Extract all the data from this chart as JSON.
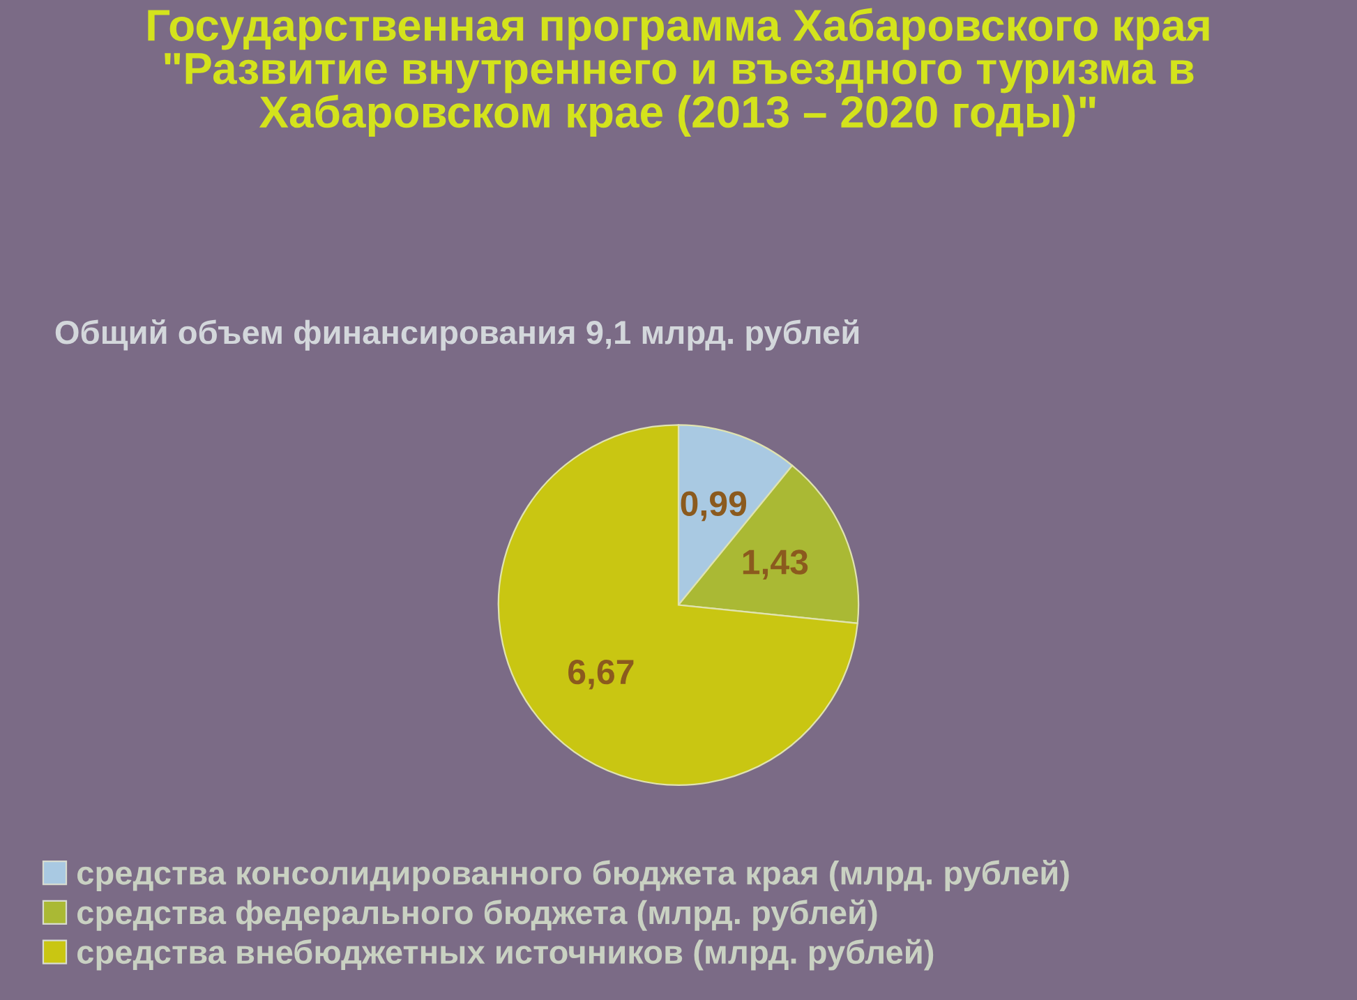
{
  "chart_data": {
    "type": "pie",
    "title": "Государственная программа Хабаровского края\n\"Развитие внутреннего и въездного туризма в\nХабаровском крае (2013 – 2020 годы)\"",
    "subtitle": "Общий объем финансирования 9,1 млрд. рублей",
    "categories": [
      "средства консолидированного бюджета края (млрд. рублей)",
      "средства федерального бюджета (млрд. рублей)",
      "средства внебюджетных источников (млрд. рублей)"
    ],
    "values": [
      0.99,
      1.43,
      6.67
    ],
    "value_labels": [
      "0,99",
      "1,43",
      "6,67"
    ],
    "colors": [
      "#a9c9e2",
      "#aab934",
      "#c9c612"
    ],
    "legend": "bottom"
  }
}
